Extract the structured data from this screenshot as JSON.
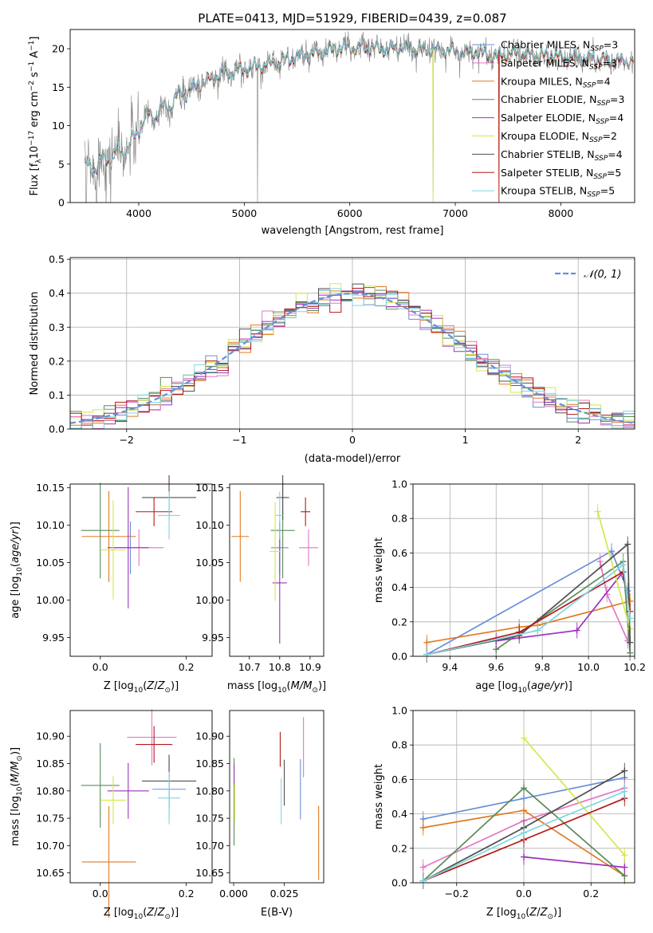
{
  "chart_data": [
    {
      "type": "line",
      "title": "PLATE=0413, MJD=51929, FIBERID=0439, z=0.087",
      "xlabel": "wavelength [Angstrom, rest frame]",
      "ylabel": "Flux [fλ10⁻¹⁷ erg cm⁻² s⁻¹ A⁻¹]",
      "xlim": [
        3350,
        8700
      ],
      "ylim": [
        0,
        22.5
      ],
      "xticks": [
        "4000",
        "5000",
        "6000",
        "7000",
        "8000"
      ],
      "yticks": [
        "0",
        "5",
        "10",
        "15",
        "20"
      ],
      "grid": false,
      "legend_position": "top-right",
      "spectrum_anchors": {
        "wavelength": [
          3500,
          3600,
          3700,
          3800,
          3900,
          3970,
          4000,
          4100,
          4200,
          4300,
          4400,
          4500,
          4600,
          4700,
          4800,
          4900,
          5000,
          5100,
          5200,
          5300,
          5400,
          5500,
          5600,
          5700,
          5800,
          5900,
          6000,
          6100,
          6200,
          6300,
          6400,
          6500,
          6600,
          6700,
          6800,
          6900,
          7000,
          7100,
          7200,
          7300,
          7400,
          7500,
          7600,
          7700,
          7800,
          7900,
          8000,
          8100,
          8200,
          8300,
          8400,
          8500,
          8600
        ],
        "flux": [
          4.5,
          4.8,
          5.8,
          6.5,
          7.0,
          8.5,
          10.0,
          11.2,
          11.8,
          12.8,
          14.2,
          14.8,
          15.5,
          16.2,
          16.8,
          16.9,
          17.3,
          17.6,
          17.9,
          18.2,
          18.6,
          18.9,
          19.2,
          19.4,
          19.8,
          20.0,
          20.1,
          20.1,
          20.2,
          19.9,
          20.0,
          20.1,
          20.0,
          19.9,
          19.8,
          19.9,
          19.6,
          19.5,
          19.6,
          19.2,
          19.0,
          19.3,
          19.4,
          19.1,
          19.0,
          19.0,
          18.9,
          18.8,
          18.7,
          18.7,
          18.5,
          18.4,
          18.4
        ]
      },
      "series": [
        {
          "name": "Chabrier MILES, N_SSP=3",
          "color": "#6a8fd8"
        },
        {
          "name": "Salpeter MILES, N_SSP=3",
          "color": "#e377c2"
        },
        {
          "name": "Kroupa MILES, N_SSP=4",
          "color": "#e07b25"
        },
        {
          "name": "Chabrier ELODIE, N_SSP=3",
          "color": "#5a8a5a"
        },
        {
          "name": "Salpeter ELODIE, N_SSP=4",
          "color": "#9b34b8"
        },
        {
          "name": "Kroupa ELODIE, N_SSP=2",
          "color": "#d4e84a"
        },
        {
          "name": "Chabrier STELIB, N_SSP=4",
          "color": "#505050"
        },
        {
          "name": "Salpeter STELIB, N_SSP=5",
          "color": "#b51818"
        },
        {
          "name": "Kroupa STELIB, N_SSP=5",
          "color": "#7fd6e0"
        }
      ],
      "data_color": "#808080"
    },
    {
      "type": "histogram",
      "xlabel": "(data-model)/error",
      "ylabel": "Normed distribution",
      "xlim": [
        -2.5,
        2.5
      ],
      "ylim": [
        0,
        0.505
      ],
      "xticks": [
        "−2",
        "−1",
        "0",
        "1",
        "2"
      ],
      "yticks": [
        "0.0",
        "0.1",
        "0.2",
        "0.3",
        "0.4",
        "0.5"
      ],
      "grid": true,
      "legend_position": "top-right",
      "legend": [
        "𝒩(0, 1)"
      ],
      "reference_curve": {
        "name": "𝒩(0, 1)",
        "mean": 0,
        "sigma": 1,
        "color": "#6a8fd8"
      },
      "bin_width": 0.1
    },
    {
      "type": "scatter",
      "panel": "Z vs age",
      "xlabel": "Z [log10(Z/Z⊙)]",
      "ylabel": "age  [log10(age/yr)]",
      "xlim": [
        -0.07,
        0.26
      ],
      "ylim": [
        9.925,
        10.155
      ],
      "xticks": [
        "0.0",
        "0.2"
      ],
      "yticks": [
        "9.95",
        "10.00",
        "10.05",
        "10.10",
        "10.15"
      ],
      "points": [
        {
          "x": 0.07,
          "y": 10.07,
          "color": "#6a8fd8"
        },
        {
          "x": 0.09,
          "y": 10.07,
          "color": "#e377c2"
        },
        {
          "x": 0.02,
          "y": 10.085,
          "color": "#e07b25"
        },
        {
          "x": 0.0,
          "y": 10.093,
          "color": "#5a8a5a"
        },
        {
          "x": 0.065,
          "y": 10.07,
          "color": "#9b34b8"
        },
        {
          "x": 0.03,
          "y": 10.067,
          "color": "#d4e84a"
        },
        {
          "x": 0.16,
          "y": 10.137,
          "color": "#505050"
        },
        {
          "x": 0.125,
          "y": 10.118,
          "color": "#b51818"
        },
        {
          "x": 0.16,
          "y": 10.113,
          "color": "#7fd6e0"
        }
      ]
    },
    {
      "type": "scatter",
      "panel": "mass vs age",
      "xlabel": "mass [log10(M/M⊙)]",
      "xlim": [
        10.635,
        10.945
      ],
      "ylim": [
        9.925,
        10.155
      ],
      "xticks": [
        "10.7",
        "10.8",
        "10.9"
      ],
      "yticks": [
        "9.95",
        "10.00",
        "10.05",
        "10.10",
        "10.15"
      ],
      "points": [
        {
          "x": 10.8,
          "y": 10.07,
          "color": "#6a8fd8"
        },
        {
          "x": 10.895,
          "y": 10.07,
          "color": "#e377c2"
        },
        {
          "x": 10.67,
          "y": 10.085,
          "color": "#e07b25"
        },
        {
          "x": 10.81,
          "y": 10.093,
          "color": "#5a8a5a"
        },
        {
          "x": 10.8,
          "y": 10.023,
          "color": "#9b34b8"
        },
        {
          "x": 10.785,
          "y": 10.065,
          "color": "#d4e84a"
        },
        {
          "x": 10.81,
          "y": 10.137,
          "color": "#505050"
        },
        {
          "x": 10.885,
          "y": 10.118,
          "color": "#b51818"
        },
        {
          "x": 10.8,
          "y": 10.113,
          "color": "#7fd6e0"
        }
      ]
    },
    {
      "type": "line",
      "panel": "mass weight vs age",
      "xlabel": "age  [log10(age/yr)]",
      "ylabel": "mass weight",
      "xlim": [
        9.24,
        10.2
      ],
      "ylim": [
        0,
        1.0
      ],
      "xticks": [
        "9.4",
        "9.6",
        "9.8",
        "10.0",
        "10.2"
      ],
      "yticks": [
        "0.0",
        "0.2",
        "0.4",
        "0.6",
        "0.8",
        "1.0"
      ],
      "grid": true,
      "series": [
        {
          "color": "#6a8fd8",
          "x": [
            9.3,
            10.1,
            10.17
          ],
          "y": [
            0.01,
            0.61,
            0.38
          ]
        },
        {
          "color": "#e377c2",
          "x": [
            10.05,
            10.08,
            10.17
          ],
          "y": [
            0.55,
            0.36,
            0.09
          ]
        },
        {
          "color": "#e07b25",
          "x": [
            9.3,
            9.7,
            9.78,
            10.18
          ],
          "y": [
            0.08,
            0.17,
            0.18,
            0.32
          ]
        },
        {
          "color": "#5a8a5a",
          "x": [
            9.6,
            10.15,
            10.18
          ],
          "y": [
            0.04,
            0.55,
            0.02
          ]
        },
        {
          "color": "#9b34b8",
          "x": [
            9.6,
            9.95,
            10.15
          ],
          "y": [
            0.09,
            0.15,
            0.49
          ]
        },
        {
          "color": "#d4e84a",
          "x": [
            10.04,
            10.18
          ],
          "y": [
            0.84,
            0.16
          ]
        },
        {
          "color": "#505050",
          "x": [
            9.3,
            9.7,
            10.17,
            10.18
          ],
          "y": [
            0.01,
            0.12,
            0.65,
            0.08
          ]
        },
        {
          "color": "#b51818",
          "x": [
            9.3,
            9.7,
            10.15,
            10.18
          ],
          "y": [
            0.01,
            0.14,
            0.49,
            0.26
          ]
        },
        {
          "color": "#7fd6e0",
          "x": [
            9.3,
            9.78,
            10.15,
            10.18
          ],
          "y": [
            0.01,
            0.15,
            0.53,
            0.22
          ]
        }
      ]
    },
    {
      "type": "scatter",
      "panel": "Z vs mass",
      "xlabel": "Z [log10(Z/Z⊙)]",
      "ylabel": "mass [log10(M/M⊙)]",
      "xlim": [
        -0.07,
        0.26
      ],
      "ylim": [
        10.632,
        10.947
      ],
      "xticks": [
        "0.0",
        "0.2"
      ],
      "yticks": [
        "10.65",
        "10.70",
        "10.75",
        "10.80",
        "10.85",
        "10.90"
      ],
      "points": [
        {
          "x": 0.16,
          "y": 10.803,
          "color": "#6a8fd8"
        },
        {
          "x": 0.12,
          "y": 10.898,
          "color": "#e377c2"
        },
        {
          "x": 0.02,
          "y": 10.67,
          "color": "#e07b25"
        },
        {
          "x": 0.0,
          "y": 10.81,
          "color": "#5a8a5a"
        },
        {
          "x": 0.065,
          "y": 10.8,
          "color": "#9b34b8"
        },
        {
          "x": 0.03,
          "y": 10.783,
          "color": "#d4e84a"
        },
        {
          "x": 0.16,
          "y": 10.818,
          "color": "#505050"
        },
        {
          "x": 0.125,
          "y": 10.885,
          "color": "#b51818"
        },
        {
          "x": 0.16,
          "y": 10.787,
          "color": "#7fd6e0"
        }
      ]
    },
    {
      "type": "scatter",
      "panel": "E(B-V) vs mass",
      "xlabel": "E(B-V)",
      "xlim": [
        -0.002,
        0.0445
      ],
      "ylim": [
        10.632,
        10.947
      ],
      "xticks": [
        "0.000",
        "0.025"
      ],
      "yticks": [
        "10.65",
        "10.70",
        "10.75",
        "10.80",
        "10.85",
        "10.90"
      ],
      "points": [
        {
          "x": 0.033,
          "y": 10.803,
          "color": "#6a8fd8",
          "yerr": 0.055
        },
        {
          "x": 0.0345,
          "y": 10.88,
          "color": "#e377c2",
          "yerr": 0.055
        },
        {
          "x": 0.042,
          "y": 10.705,
          "color": "#e07b25",
          "yerr": 0.068
        },
        {
          "x": 0.0002,
          "y": 10.78,
          "color": "#5a8a5a",
          "yerr": 0.08
        },
        {
          "x": 0.0002,
          "y": 10.83,
          "color": "#9b34b8",
          "yerr": 0.02
        },
        {
          "x": 0.0005,
          "y": 10.78,
          "color": "#d4e84a",
          "yerr": 0.035
        },
        {
          "x": 0.025,
          "y": 10.815,
          "color": "#505050",
          "yerr": 0.042
        },
        {
          "x": 0.023,
          "y": 10.876,
          "color": "#b51818",
          "yerr": 0.032
        },
        {
          "x": 0.0235,
          "y": 10.781,
          "color": "#7fd6e0",
          "yerr": 0.042
        }
      ]
    },
    {
      "type": "line",
      "panel": "mass weight vs Z",
      "xlabel": "Z [log10(Z/Z⊙)]",
      "ylabel": "mass weight",
      "xlim": [
        -0.33,
        0.33
      ],
      "ylim": [
        0,
        1.0
      ],
      "xticks": [
        "−0.2",
        "0.0",
        "0.2"
      ],
      "yticks": [
        "0.0",
        "0.2",
        "0.4",
        "0.6",
        "0.8",
        "1.0"
      ],
      "grid": true,
      "series": [
        {
          "color": "#6a8fd8",
          "x": [
            -0.3,
            0.0,
            0.3
          ],
          "y": [
            0.37,
            0.49,
            0.61
          ]
        },
        {
          "color": "#e377c2",
          "x": [
            -0.3,
            0.0,
            0.3
          ],
          "y": [
            0.09,
            0.36,
            0.55
          ]
        },
        {
          "color": "#e07b25",
          "x": [
            -0.3,
            0.0,
            0.3
          ],
          "y": [
            0.32,
            0.42,
            0.04
          ]
        },
        {
          "color": "#5a8a5a",
          "x": [
            -0.3,
            0.0,
            0.3
          ],
          "y": [
            0.01,
            0.55,
            0.04
          ]
        },
        {
          "color": "#9b34b8",
          "x": [
            0.0,
            0.3
          ],
          "y": [
            0.15,
            0.09
          ]
        },
        {
          "color": "#d4e84a",
          "x": [
            0.0,
            0.3
          ],
          "y": [
            0.84,
            0.16
          ]
        },
        {
          "color": "#505050",
          "x": [
            -0.3,
            0.0,
            0.3
          ],
          "y": [
            0.01,
            0.32,
            0.65
          ]
        },
        {
          "color": "#b51818",
          "x": [
            -0.3,
            0.0,
            0.3
          ],
          "y": [
            0.01,
            0.25,
            0.49
          ]
        },
        {
          "color": "#7fd6e0",
          "x": [
            -0.3,
            0.0,
            0.3
          ],
          "y": [
            0.01,
            0.29,
            0.53
          ]
        }
      ]
    }
  ]
}
